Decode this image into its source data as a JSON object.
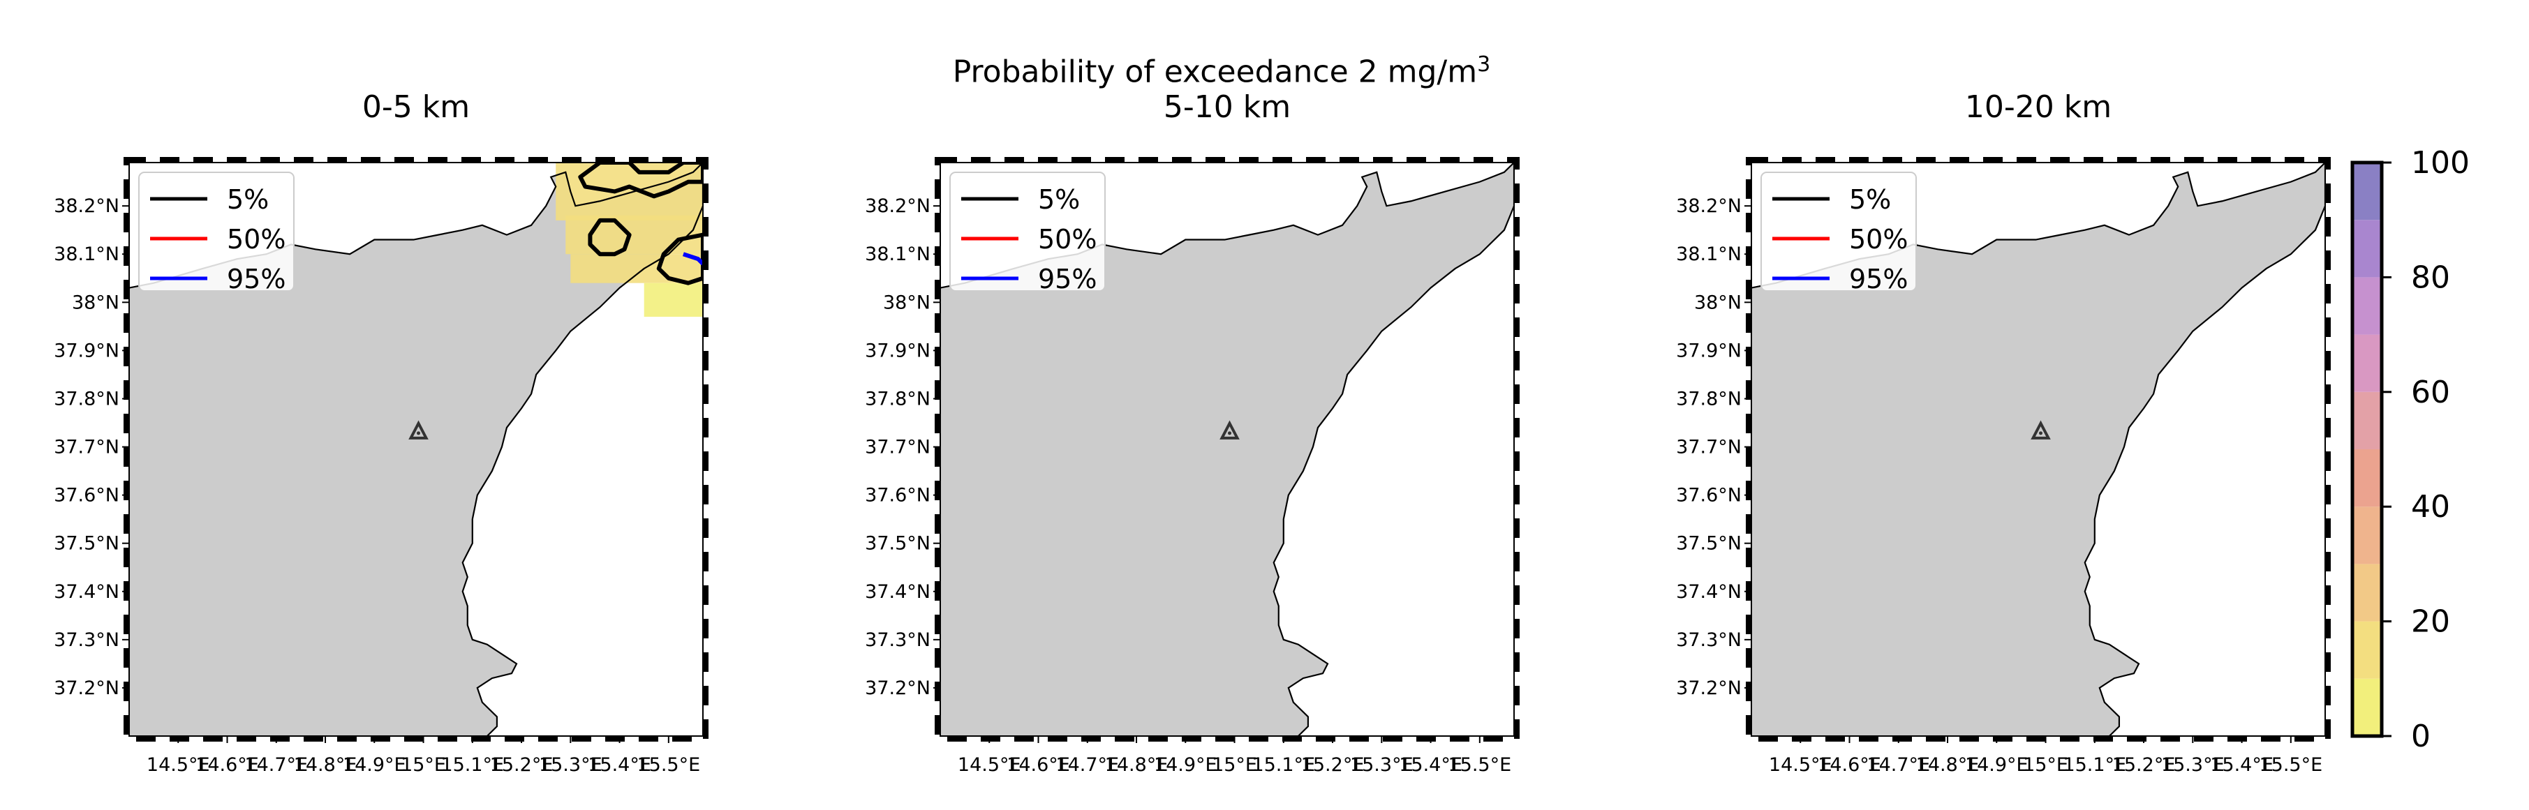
{
  "figure": {
    "title": {
      "text": "Probability of exceedance 2 mg/m",
      "superscript": "3"
    }
  },
  "chart_data": [
    {
      "type": "heatmap",
      "subplot_title": "0-5 km",
      "xlim": [
        14.4,
        15.57
      ],
      "ylim": [
        37.1,
        38.29
      ],
      "x_ticks": [
        14.5,
        14.6,
        14.7,
        14.8,
        14.9,
        15.0,
        15.1,
        15.2,
        15.3,
        15.4,
        15.5
      ],
      "x_tick_labels": [
        "14.5°E",
        "14.6°E",
        "14.7°E",
        "14.8°E",
        "14.9°E",
        "15°E",
        "15.1°E",
        "15.2°E",
        "15.3°E",
        "15.4°E",
        "15.5°E"
      ],
      "y_ticks": [
        37.2,
        37.3,
        37.4,
        37.5,
        37.6,
        37.7,
        37.8,
        37.9,
        38.0,
        38.1,
        38.2
      ],
      "y_tick_labels": [
        "37.2°N",
        "37.3°N",
        "37.4°N",
        "37.5°N",
        "37.6°N",
        "37.7°N",
        "37.8°N",
        "37.9°N",
        "38°N",
        "38.1°N",
        "38.2°N"
      ],
      "legend": {
        "placement": "top-left",
        "entries": [
          {
            "label": "5%",
            "color": "#000000"
          },
          {
            "label": "50%",
            "color": "#ff0000"
          },
          {
            "label": "95%",
            "color": "#0000ff"
          }
        ]
      },
      "marker": {
        "symbol": "triangle",
        "lon": 14.99,
        "lat": 37.73
      },
      "probability_cells": [
        {
          "lon0": 15.27,
          "lon1": 15.57,
          "lat0": 38.17,
          "lat1": 38.29,
          "p": 10
        },
        {
          "lon0": 15.29,
          "lon1": 15.57,
          "lat0": 38.1,
          "lat1": 38.18,
          "p": 10
        },
        {
          "lon0": 15.3,
          "lon1": 15.57,
          "lat0": 38.04,
          "lat1": 38.1,
          "p": 10
        },
        {
          "lon0": 15.45,
          "lon1": 15.57,
          "lat0": 37.97,
          "lat1": 38.04,
          "p": 5
        }
      ],
      "contours_5pct": [
        [
          [
            15.32,
            38.26
          ],
          [
            15.36,
            38.29
          ],
          [
            15.42,
            38.29
          ],
          [
            15.44,
            38.27
          ],
          [
            15.5,
            38.27
          ],
          [
            15.53,
            38.29
          ],
          [
            15.57,
            38.29
          ],
          [
            15.57,
            38.25
          ],
          [
            15.54,
            38.25
          ],
          [
            15.5,
            38.23
          ],
          [
            15.47,
            38.22
          ],
          [
            15.42,
            38.24
          ],
          [
            15.39,
            38.23
          ],
          [
            15.33,
            38.24
          ]
        ],
        [
          [
            15.34,
            38.14
          ],
          [
            15.36,
            38.17
          ],
          [
            15.39,
            38.17
          ],
          [
            15.42,
            38.14
          ],
          [
            15.41,
            38.11
          ],
          [
            15.39,
            38.1
          ],
          [
            15.36,
            38.1
          ],
          [
            15.34,
            38.12
          ]
        ],
        [
          [
            15.57,
            38.14
          ],
          [
            15.52,
            38.13
          ],
          [
            15.49,
            38.1
          ],
          [
            15.48,
            38.07
          ],
          [
            15.5,
            38.05
          ],
          [
            15.54,
            38.04
          ],
          [
            15.57,
            38.05
          ]
        ]
      ],
      "contours_50pct": [],
      "contours_95pct": [
        [
          [
            15.53,
            38.1
          ],
          [
            15.56,
            38.09
          ],
          [
            15.57,
            38.08
          ]
        ]
      ]
    },
    {
      "type": "heatmap",
      "subplot_title": "5-10 km",
      "xlim": [
        14.4,
        15.57
      ],
      "ylim": [
        37.1,
        38.29
      ],
      "x_ticks": [
        14.5,
        14.6,
        14.7,
        14.8,
        14.9,
        15.0,
        15.1,
        15.2,
        15.3,
        15.4,
        15.5
      ],
      "x_tick_labels": [
        "14.5°E",
        "14.6°E",
        "14.7°E",
        "14.8°E",
        "14.9°E",
        "15°E",
        "15.1°E",
        "15.2°E",
        "15.3°E",
        "15.4°E",
        "15.5°E"
      ],
      "y_ticks": [
        37.2,
        37.3,
        37.4,
        37.5,
        37.6,
        37.7,
        37.8,
        37.9,
        38.0,
        38.1,
        38.2
      ],
      "y_tick_labels": [
        "37.2°N",
        "37.3°N",
        "37.4°N",
        "37.5°N",
        "37.6°N",
        "37.7°N",
        "37.8°N",
        "37.9°N",
        "38°N",
        "38.1°N",
        "38.2°N"
      ],
      "legend": {
        "placement": "top-left",
        "entries": [
          {
            "label": "5%",
            "color": "#000000"
          },
          {
            "label": "50%",
            "color": "#ff0000"
          },
          {
            "label": "95%",
            "color": "#0000ff"
          }
        ]
      },
      "marker": {
        "symbol": "triangle",
        "lon": 14.99,
        "lat": 37.73
      },
      "probability_cells": [],
      "contours_5pct": [],
      "contours_50pct": [],
      "contours_95pct": []
    },
    {
      "type": "heatmap",
      "subplot_title": "10-20 km",
      "xlim": [
        14.4,
        15.57
      ],
      "ylim": [
        37.1,
        38.29
      ],
      "x_ticks": [
        14.5,
        14.6,
        14.7,
        14.8,
        14.9,
        15.0,
        15.1,
        15.2,
        15.3,
        15.4,
        15.5
      ],
      "x_tick_labels": [
        "14.5°E",
        "14.6°E",
        "14.7°E",
        "14.8°E",
        "14.9°E",
        "15°E",
        "15.1°E",
        "15.2°E",
        "15.3°E",
        "15.4°E",
        "15.5°E"
      ],
      "y_ticks": [
        37.2,
        37.3,
        37.4,
        37.5,
        37.6,
        37.7,
        37.8,
        37.9,
        38.0,
        38.1,
        38.2
      ],
      "y_tick_labels": [
        "37.2°N",
        "37.3°N",
        "37.4°N",
        "37.5°N",
        "37.6°N",
        "37.7°N",
        "37.8°N",
        "37.9°N",
        "38°N",
        "38.1°N",
        "38.2°N"
      ],
      "legend": {
        "placement": "top-left",
        "entries": [
          {
            "label": "5%",
            "color": "#000000"
          },
          {
            "label": "50%",
            "color": "#ff0000"
          },
          {
            "label": "95%",
            "color": "#0000ff"
          }
        ]
      },
      "marker": {
        "symbol": "triangle",
        "lon": 14.99,
        "lat": 37.73
      },
      "probability_cells": [],
      "contours_5pct": [],
      "contours_50pct": [],
      "contours_95pct": []
    }
  ],
  "colorbar": {
    "min": 0,
    "max": 100,
    "ticks": [
      0,
      20,
      40,
      60,
      80,
      100
    ],
    "tick_labels": [
      "0",
      "20",
      "40",
      "60",
      "80",
      "100"
    ],
    "bands": [
      {
        "from": 0,
        "to": 10,
        "color": "#f2ef7c"
      },
      {
        "from": 10,
        "to": 20,
        "color": "#f3de80"
      },
      {
        "from": 20,
        "to": 30,
        "color": "#f2c987"
      },
      {
        "from": 30,
        "to": 40,
        "color": "#efb48d"
      },
      {
        "from": 40,
        "to": 50,
        "color": "#eba38f"
      },
      {
        "from": 50,
        "to": 60,
        "color": "#e3a1a7"
      },
      {
        "from": 60,
        "to": 70,
        "color": "#d998c2"
      },
      {
        "from": 70,
        "to": 80,
        "color": "#c691cf"
      },
      {
        "from": 80,
        "to": 90,
        "color": "#a986cf"
      },
      {
        "from": 90,
        "to": 100,
        "color": "#8a80c4"
      }
    ]
  },
  "land_color": "#cccccc",
  "sea_color": "#ffffff",
  "coastline": [
    [
      14.4,
      38.03
    ],
    [
      14.45,
      38.04
    ],
    [
      14.55,
      38.07
    ],
    [
      14.62,
      38.09
    ],
    [
      14.68,
      38.1
    ],
    [
      14.73,
      38.12
    ],
    [
      14.78,
      38.11
    ],
    [
      14.85,
      38.1
    ],
    [
      14.9,
      38.13
    ],
    [
      14.98,
      38.13
    ],
    [
      15.03,
      38.14
    ],
    [
      15.08,
      38.15
    ],
    [
      15.12,
      38.16
    ],
    [
      15.17,
      38.14
    ],
    [
      15.22,
      38.16
    ],
    [
      15.25,
      38.2
    ],
    [
      15.27,
      38.24
    ],
    [
      15.26,
      38.26
    ],
    [
      15.29,
      38.27
    ],
    [
      15.3,
      38.23
    ],
    [
      15.31,
      38.2
    ],
    [
      15.36,
      38.21
    ],
    [
      15.43,
      38.23
    ],
    [
      15.5,
      38.25
    ],
    [
      15.55,
      38.27
    ],
    [
      15.57,
      38.29
    ],
    [
      15.57,
      38.2
    ],
    [
      15.55,
      38.15
    ],
    [
      15.5,
      38.1
    ],
    [
      15.45,
      38.07
    ],
    [
      15.4,
      38.03
    ],
    [
      15.36,
      37.99
    ],
    [
      15.3,
      37.94
    ],
    [
      15.27,
      37.9
    ],
    [
      15.23,
      37.85
    ],
    [
      15.22,
      37.81
    ],
    [
      15.2,
      37.78
    ],
    [
      15.17,
      37.74
    ],
    [
      15.16,
      37.7
    ],
    [
      15.14,
      37.65
    ],
    [
      15.11,
      37.6
    ],
    [
      15.1,
      37.55
    ],
    [
      15.1,
      37.5
    ],
    [
      15.08,
      37.46
    ],
    [
      15.09,
      37.43
    ],
    [
      15.08,
      37.4
    ],
    [
      15.09,
      37.37
    ],
    [
      15.09,
      37.33
    ],
    [
      15.1,
      37.3
    ],
    [
      15.13,
      37.29
    ],
    [
      15.16,
      37.27
    ],
    [
      15.19,
      37.25
    ],
    [
      15.18,
      37.23
    ],
    [
      15.14,
      37.22
    ],
    [
      15.11,
      37.2
    ],
    [
      15.12,
      37.17
    ],
    [
      15.15,
      37.14
    ],
    [
      15.15,
      37.12
    ],
    [
      15.13,
      37.1
    ]
  ]
}
